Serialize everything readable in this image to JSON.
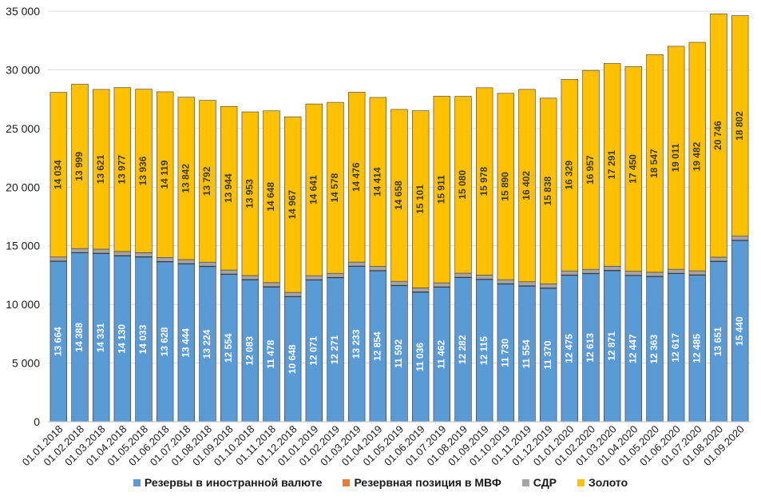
{
  "chart_data": {
    "type": "bar",
    "stacked": true,
    "categories": [
      "01.01.2018",
      "01.02.2018",
      "01.03.2018",
      "01.04.2018",
      "01.05.2018",
      "01.06.2018",
      "01.07.2018",
      "01.08.2018",
      "01.09.2018",
      "01.10.2018",
      "01.11.2018",
      "01.12.2018",
      "01.01.2019",
      "01.02.2019",
      "01.03.2019",
      "01.04.2019",
      "01.05.2019",
      "01.06.2019",
      "01.07.2019",
      "01.08.2019",
      "01.09.2019",
      "01.10.2019",
      "01.11.2019",
      "01.12.2019",
      "01.01.2020",
      "01.02.2020",
      "01.03.2020",
      "01.04.2020",
      "01.05.2020",
      "01.06.2020",
      "01.07.2020",
      "01.08.2020",
      "01.09.2020"
    ],
    "series": [
      {
        "name": "Резервы в иностранной валюте",
        "color": "#5B9BD5",
        "values": [
          13664,
          14388,
          14331,
          14130,
          14033,
          13628,
          13444,
          13224,
          12554,
          12083,
          11478,
          10648,
          12071,
          12271,
          13233,
          12854,
          11592,
          11036,
          11462,
          12282,
          12115,
          11730,
          11554,
          11370,
          12475,
          12613,
          12871,
          12447,
          12363,
          12617,
          12485,
          13651,
          15440
        ],
        "labels": [
          "13 664",
          "14 388",
          "14 331",
          "14 130",
          "14 033",
          "13 628",
          "13 444",
          "13 224",
          "12 554",
          "12 083",
          "11 478",
          "10 648",
          "12 071",
          "12 271",
          "13 233",
          "12 854",
          "11 592",
          "11 036",
          "11 462",
          "12 282",
          "12 115",
          "11 730",
          "11 554",
          "11 370",
          "12 475",
          "12 613",
          "12 871",
          "12 447",
          "12 363",
          "12 617",
          "12 485",
          "13 651",
          "15 440"
        ]
      },
      {
        "name": "Резервная позиция в МВФ",
        "color": "#ED7D31",
        "values": [
          40,
          40,
          40,
          40,
          40,
          40,
          40,
          40,
          40,
          40,
          40,
          40,
          40,
          40,
          40,
          40,
          40,
          40,
          40,
          40,
          40,
          40,
          40,
          40,
          40,
          40,
          40,
          40,
          40,
          40,
          40,
          40,
          40
        ]
      },
      {
        "name": "СДР",
        "color": "#A5A5A5",
        "values": [
          340,
          340,
          340,
          340,
          340,
          340,
          340,
          340,
          340,
          340,
          340,
          340,
          340,
          340,
          340,
          340,
          340,
          340,
          340,
          340,
          340,
          340,
          340,
          340,
          340,
          340,
          340,
          340,
          340,
          340,
          340,
          340,
          340
        ]
      },
      {
        "name": "Золото",
        "color": "#FFC000",
        "values": [
          14034,
          13999,
          13621,
          13977,
          13936,
          14119,
          13842,
          13792,
          13944,
          13953,
          14648,
          14967,
          14641,
          14578,
          14476,
          14414,
          14658,
          15101,
          15911,
          15080,
          15978,
          15890,
          16402,
          15838,
          16329,
          16957,
          17291,
          17450,
          18547,
          19011,
          19482,
          20746,
          18802
        ],
        "labels": [
          "14 034",
          "13 999",
          "13 621",
          "13 977",
          "13 936",
          "14 119",
          "13 842",
          "13 792",
          "13 944",
          "13 953",
          "14 648",
          "14 967",
          "14 641",
          "14 578",
          "14 476",
          "14 414",
          "14 658",
          "15 101",
          "15 911",
          "15 080",
          "15 978",
          "15 890",
          "16 402",
          "15 838",
          "16 329",
          "16 957",
          "17 291",
          "17 450",
          "18 547",
          "19 011",
          "19 482",
          "20 746",
          "18 802"
        ]
      }
    ],
    "ylim": [
      0,
      35000
    ],
    "yticks": [
      0,
      5000,
      10000,
      15000,
      20000,
      25000,
      30000,
      35000
    ],
    "ytick_labels": [
      "0",
      "5 000",
      "10 000",
      "15 000",
      "20 000",
      "25 000",
      "30 000",
      "35 000"
    ],
    "grid": true,
    "legend_position": "bottom"
  }
}
